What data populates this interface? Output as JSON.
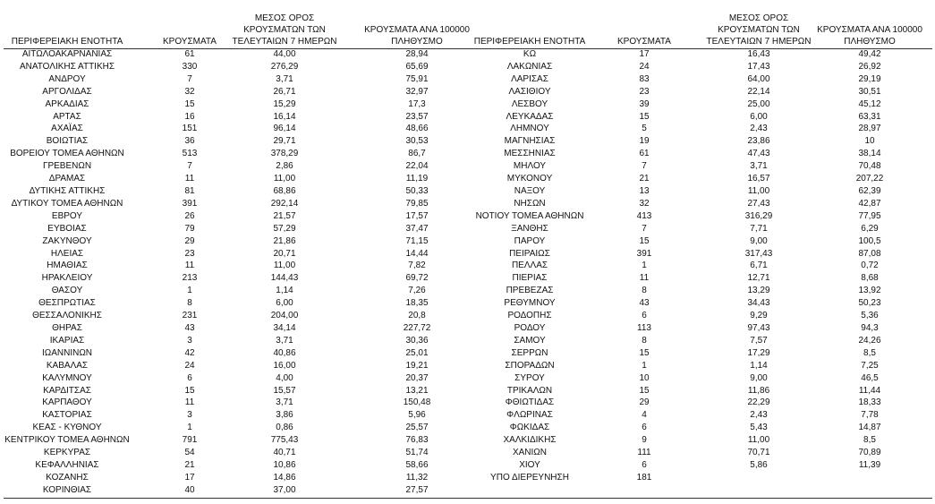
{
  "table": {
    "header": [
      [
        "ΠΕΡΙΦΕΡΕΙΑΚΗ ΕΝΟΤΗΤΑ"
      ],
      [
        "ΚΡΟΥΣΜΑΤΑ"
      ],
      [
        "ΜΕΣΟΣ ΟΡΟΣ",
        "ΚΡΟΥΣΜΑΤΩΝ ΤΩΝ",
        "ΤΕΛΕΥΤΑΙΩΝ 7 ΗΜΕΡΩΝ"
      ],
      [
        "ΚΡΟΥΣΜΑΤΑ ΑΝΑ 100000",
        "ΠΛΗΘΥΣΜΟ"
      ]
    ],
    "left": [
      [
        "ΑΙΤΩΛΟΑΚΑΡΝΑΝΙΑΣ",
        "61",
        "44,00",
        "28,94"
      ],
      [
        "ΑΝΑΤΟΛΙΚΗΣ ΑΤΤΙΚΗΣ",
        "330",
        "276,29",
        "65,69"
      ],
      [
        "ΑΝΔΡΟΥ",
        "7",
        "3,71",
        "75,91"
      ],
      [
        "ΑΡΓΟΛΙΔΑΣ",
        "32",
        "26,71",
        "32,97"
      ],
      [
        "ΑΡΚΑΔΙΑΣ",
        "15",
        "15,29",
        "17,3"
      ],
      [
        "ΑΡΤΑΣ",
        "16",
        "16,14",
        "23,57"
      ],
      [
        "ΑΧΑΪΑΣ",
        "151",
        "96,14",
        "48,66"
      ],
      [
        "ΒΟΙΩΤΙΑΣ",
        "36",
        "29,71",
        "30,53"
      ],
      [
        "ΒΟΡΕΙΟΥ ΤΟΜΕΑ ΑΘΗΝΩΝ",
        "513",
        "378,29",
        "86,7"
      ],
      [
        "ΓΡΕΒΕΝΩΝ",
        "7",
        "2,86",
        "22,04"
      ],
      [
        "ΔΡΑΜΑΣ",
        "11",
        "11,00",
        "11,19"
      ],
      [
        "ΔΥΤΙΚΗΣ ΑΤΤΙΚΗΣ",
        "81",
        "68,86",
        "50,33"
      ],
      [
        "ΔΥΤΙΚΟΥ ΤΟΜΕΑ ΑΘΗΝΩΝ",
        "391",
        "292,14",
        "79,85"
      ],
      [
        "ΕΒΡΟΥ",
        "26",
        "21,57",
        "17,57"
      ],
      [
        "ΕΥΒΟΙΑΣ",
        "79",
        "57,29",
        "37,47"
      ],
      [
        "ΖΑΚΥΝΘΟΥ",
        "29",
        "21,86",
        "71,15"
      ],
      [
        "ΗΛΕΙΑΣ",
        "23",
        "20,71",
        "14,44"
      ],
      [
        "ΗΜΑΘΙΑΣ",
        "11",
        "11,00",
        "7,82"
      ],
      [
        "ΗΡΑΚΛΕΙΟΥ",
        "213",
        "144,43",
        "69,72"
      ],
      [
        "ΘΑΣΟΥ",
        "1",
        "1,14",
        "7,26"
      ],
      [
        "ΘΕΣΠΡΩΤΙΑΣ",
        "8",
        "6,00",
        "18,35"
      ],
      [
        "ΘΕΣΣΑΛΟΝΙΚΗΣ",
        "231",
        "204,00",
        "20,8"
      ],
      [
        "ΘΗΡΑΣ",
        "43",
        "34,14",
        "227,72"
      ],
      [
        "ΙΚΑΡΙΑΣ",
        "3",
        "3,71",
        "30,36"
      ],
      [
        "ΙΩΑΝΝΙΝΩΝ",
        "42",
        "40,86",
        "25,01"
      ],
      [
        "ΚΑΒΑΛΑΣ",
        "24",
        "16,00",
        "19,21"
      ],
      [
        "ΚΑΛΥΜΝΟΥ",
        "6",
        "4,00",
        "20,37"
      ],
      [
        "ΚΑΡΔΙΤΣΑΣ",
        "15",
        "15,57",
        "13,21"
      ],
      [
        "ΚΑΡΠΑΘΟΥ",
        "11",
        "3,71",
        "150,48"
      ],
      [
        "ΚΑΣΤΟΡΙΑΣ",
        "3",
        "3,86",
        "5,96"
      ],
      [
        "ΚΕΑΣ - ΚΥΘΝΟΥ",
        "1",
        "0,86",
        "25,57"
      ],
      [
        "ΚΕΝΤΡΙΚΟΥ ΤΟΜΕΑ ΑΘΗΝΩΝ",
        "791",
        "775,43",
        "76,83"
      ],
      [
        "ΚΕΡΚΥΡΑΣ",
        "54",
        "40,71",
        "51,74"
      ],
      [
        "ΚΕΦΑΛΛΗΝΙΑΣ",
        "21",
        "10,86",
        "58,66"
      ],
      [
        "ΚΟΖΑΝΗΣ",
        "17",
        "14,86",
        "11,32"
      ],
      [
        "ΚΟΡΙΝΘΙΑΣ",
        "40",
        "37,00",
        "27,57"
      ]
    ],
    "right": [
      [
        "ΚΩ",
        "17",
        "16,43",
        "49,42"
      ],
      [
        "ΛΑΚΩΝΙΑΣ",
        "24",
        "17,43",
        "26,92"
      ],
      [
        "ΛΑΡΙΣΑΣ",
        "83",
        "64,00",
        "29,19"
      ],
      [
        "ΛΑΣΙΘΙΟΥ",
        "23",
        "22,14",
        "30,51"
      ],
      [
        "ΛΕΣΒΟΥ",
        "39",
        "25,00",
        "45,12"
      ],
      [
        "ΛΕΥΚΑΔΑΣ",
        "15",
        "6,00",
        "63,31"
      ],
      [
        "ΛΗΜΝΟΥ",
        "5",
        "2,43",
        "28,97"
      ],
      [
        "ΜΑΓΝΗΣΙΑΣ",
        "19",
        "23,86",
        "10"
      ],
      [
        "ΜΕΣΣΗΝΙΑΣ",
        "61",
        "47,43",
        "38,14"
      ],
      [
        "ΜΗΛΟΥ",
        "7",
        "3,71",
        "70,48"
      ],
      [
        "ΜΥΚΟΝΟΥ",
        "21",
        "16,57",
        "207,22"
      ],
      [
        "ΝΑΞΟΥ",
        "13",
        "11,00",
        "62,39"
      ],
      [
        "ΝΗΣΩΝ",
        "32",
        "27,43",
        "42,87"
      ],
      [
        "ΝΟΤΙΟΥ ΤΟΜΕΑ ΑΘΗΝΩΝ",
        "413",
        "316,29",
        "77,95"
      ],
      [
        "ΞΑΝΘΗΣ",
        "7",
        "7,71",
        "6,29"
      ],
      [
        "ΠΑΡΟΥ",
        "15",
        "9,00",
        "100,5"
      ],
      [
        "ΠΕΙΡΑΙΩΣ",
        "391",
        "317,43",
        "87,08"
      ],
      [
        "ΠΕΛΛΑΣ",
        "1",
        "6,71",
        "0,72"
      ],
      [
        "ΠΙΕΡΙΑΣ",
        "11",
        "12,71",
        "8,68"
      ],
      [
        "ΠΡΕΒΕΖΑΣ",
        "8",
        "13,29",
        "13,92"
      ],
      [
        "ΡΕΘΥΜΝΟΥ",
        "43",
        "34,43",
        "50,23"
      ],
      [
        "ΡΟΔΟΠΗΣ",
        "6",
        "9,29",
        "5,36"
      ],
      [
        "ΡΟΔΟΥ",
        "113",
        "97,43",
        "94,3"
      ],
      [
        "ΣΑΜΟΥ",
        "8",
        "7,57",
        "24,26"
      ],
      [
        "ΣΕΡΡΩΝ",
        "15",
        "17,29",
        "8,5"
      ],
      [
        "ΣΠΟΡΑΔΩΝ",
        "1",
        "1,14",
        "7,25"
      ],
      [
        "ΣΥΡΟΥ",
        "10",
        "9,00",
        "46,5"
      ],
      [
        "ΤΡΙΚΑΛΩΝ",
        "15",
        "11,86",
        "11,44"
      ],
      [
        "ΦΘΙΩΤΙΔΑΣ",
        "29",
        "22,29",
        "18,33"
      ],
      [
        "ΦΛΩΡΙΝΑΣ",
        "4",
        "2,43",
        "7,78"
      ],
      [
        "ΦΩΚΙΔΑΣ",
        "6",
        "5,43",
        "14,87"
      ],
      [
        "ΧΑΛΚΙΔΙΚΗΣ",
        "9",
        "11,00",
        "8,5"
      ],
      [
        "ΧΑΝΙΩΝ",
        "111",
        "70,71",
        "70,89"
      ],
      [
        "ΧΙΟΥ",
        "6",
        "5,86",
        "11,39"
      ],
      [
        "ΥΠΟ ΔΙΕΡΕΥΝΗΣΗ",
        "181"
      ]
    ]
  }
}
